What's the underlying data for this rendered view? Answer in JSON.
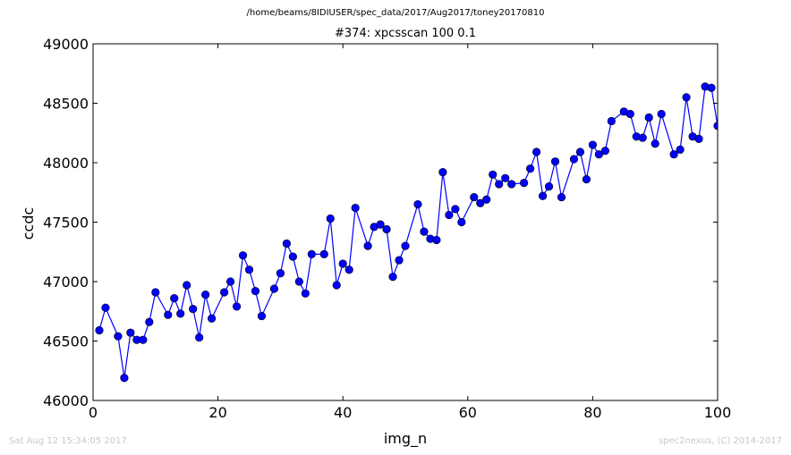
{
  "suptitle": "/home/beams/8IDIUSER/spec_data/2017/Aug2017/toney20170810",
  "footer": {
    "timestamp": "Sat Aug 12 15:34:05 2017",
    "credit": "spec2nexus, (C) 2014-2017"
  },
  "chart_data": {
    "type": "line",
    "title": "#374: xpcsscan 100 0.1",
    "xlabel": "img_n",
    "ylabel": "ccdc",
    "xlim": [
      0,
      100
    ],
    "ylim": [
      46000,
      49000
    ],
    "xticks": [
      0,
      20,
      40,
      60,
      80,
      100
    ],
    "yticks": [
      46000,
      46500,
      47000,
      47500,
      48000,
      48500,
      49000
    ],
    "grid": false,
    "colors": {
      "line": "#0000ff",
      "marker": "#0000ff"
    },
    "series": [
      {
        "x": [
          1,
          2,
          3,
          4,
          5,
          6,
          7,
          8,
          9,
          10,
          11,
          12,
          13,
          14,
          15,
          16,
          17,
          18,
          19,
          20,
          21,
          22,
          23,
          24,
          25,
          26,
          27,
          28,
          29,
          30,
          31,
          32,
          33,
          34,
          35,
          36,
          37,
          38,
          39,
          40,
          41,
          42,
          43,
          44,
          45,
          46,
          47,
          48,
          49,
          50,
          51,
          52,
          53,
          54,
          55,
          56,
          57,
          58,
          59,
          60,
          61,
          62,
          63,
          64,
          65,
          66,
          67,
          68,
          69,
          70,
          71,
          72,
          73,
          74,
          75,
          76,
          77,
          78,
          79,
          80,
          81,
          82,
          83,
          84,
          85,
          86,
          87,
          88,
          89,
          90,
          91,
          92,
          93,
          94,
          95,
          96,
          97,
          98,
          99,
          100
        ],
        "values": [
          46590,
          46780,
          null,
          46540,
          46190,
          46570,
          46510,
          46510,
          46660,
          46910,
          null,
          46720,
          46860,
          46730,
          46970,
          46770,
          46530,
          46890,
          46690,
          null,
          46910,
          47000,
          46790,
          47220,
          47100,
          46920,
          46710,
          null,
          46940,
          47070,
          47320,
          47210,
          47000,
          46900,
          47230,
          null,
          47230,
          47530,
          46970,
          47150,
          47100,
          47620,
          null,
          47300,
          47460,
          47480,
          47440,
          47040,
          47180,
          47300,
          null,
          47650,
          47420,
          47360,
          47350,
          47920,
          47560,
          47610,
          47500,
          null,
          47710,
          47660,
          47690,
          47900,
          47820,
          47870,
          47820,
          null,
          47830,
          47950,
          48090,
          47720,
          47800,
          48010,
          47710,
          null,
          48030,
          48090,
          47860,
          48150,
          48070,
          48100,
          48350,
          null,
          48430,
          48410,
          48220,
          48210,
          48380,
          48160,
          48410,
          null,
          48070,
          48110,
          48550,
          48220,
          48200,
          48640,
          48630,
          48310
        ]
      }
    ]
  }
}
